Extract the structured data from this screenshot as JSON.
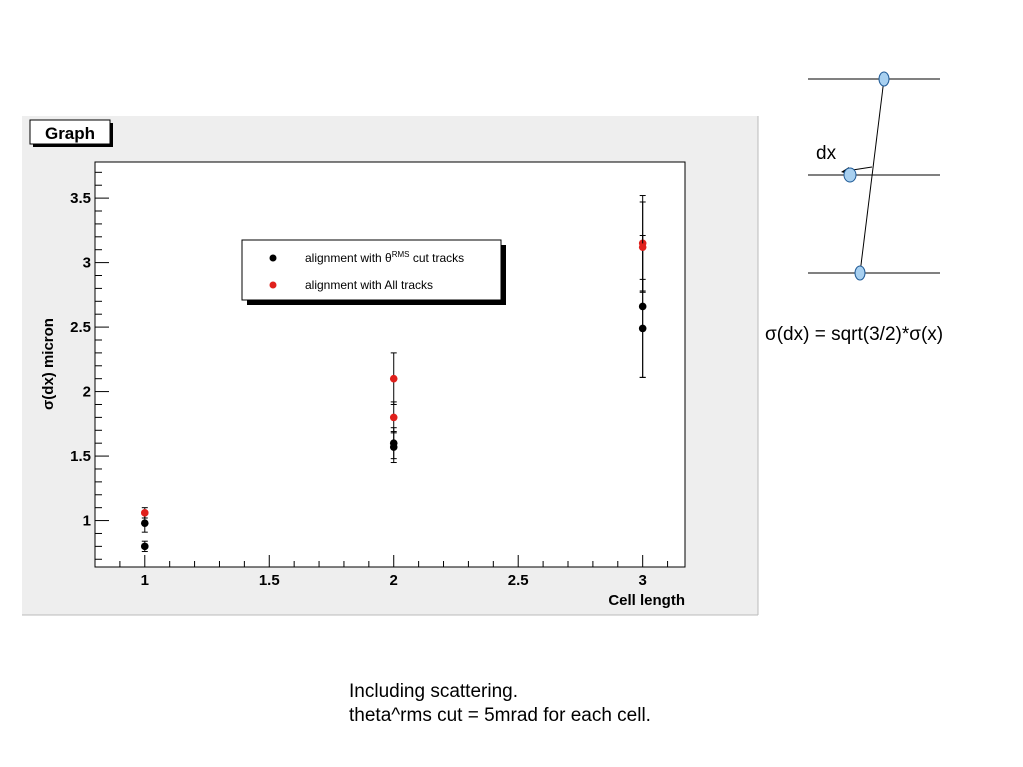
{
  "chart_data": {
    "type": "scatter",
    "title": "Graph",
    "xlabel": "Cell length",
    "ylabel": "σ(dx) micron",
    "xlim": [
      0.8,
      3.17
    ],
    "ylim": [
      0.64,
      3.78
    ],
    "xticks": [
      "1",
      "1.5",
      "2",
      "2.5",
      "3"
    ],
    "yticks": [
      "1",
      "1.5",
      "2",
      "2.5",
      "3",
      "3.5"
    ],
    "legend": {
      "placement": "top-center",
      "entries": [
        {
          "prefix": "alignment with θ",
          "sup": "RMS",
          "suffix": " cut tracks",
          "color": "#000000"
        },
        {
          "prefix": "alignment with All tracks",
          "sup": "",
          "suffix": "",
          "color": "#e0201c"
        }
      ]
    },
    "series": [
      {
        "legend_index": 0,
        "color": "#000000",
        "points": [
          {
            "x": 1,
            "y": 0.98,
            "err": 0.07
          },
          {
            "x": 1,
            "y": 0.8,
            "err": 0.04
          },
          {
            "x": 2,
            "y": 1.6,
            "err": 0.12
          },
          {
            "x": 2,
            "y": 1.57,
            "err": 0.12
          },
          {
            "x": 3,
            "y": 2.66,
            "err": 0.55
          },
          {
            "x": 3,
            "y": 2.49,
            "err": 0.38
          }
        ]
      },
      {
        "legend_index": 1,
        "color": "#e0201c",
        "points": [
          {
            "x": 1,
            "y": 1.06,
            "err": 0.04
          },
          {
            "x": 2,
            "y": 2.1,
            "err": 0.2
          },
          {
            "x": 2,
            "y": 1.8,
            "err": 0.12
          },
          {
            "x": 3,
            "y": 3.15,
            "err": 0.37
          },
          {
            "x": 3,
            "y": 3.12,
            "err": 0.35
          }
        ]
      }
    ]
  },
  "diagram": {
    "label": "dx",
    "formula": "σ(dx) = sqrt(3/2)*σ(x)",
    "colors": {
      "marker_fill": "#a8d0f0",
      "marker_stroke": "#1f5a96"
    }
  },
  "caption": {
    "line1": "Including scattering.",
    "line2": "theta^rms cut = 5mrad for each cell."
  }
}
